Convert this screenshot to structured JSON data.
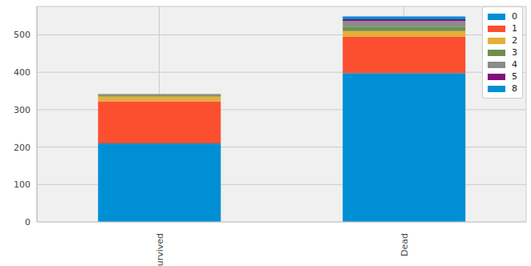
{
  "chart_data": {
    "type": "bar",
    "stacked": true,
    "categories": [
      "Survived",
      "Dead"
    ],
    "series": [
      {
        "name": "0",
        "color": "#008fd5",
        "values": [
          210,
          398
        ]
      },
      {
        "name": "1",
        "color": "#fc4f30",
        "values": [
          112,
          97
        ]
      },
      {
        "name": "2",
        "color": "#e5ae38",
        "values": [
          13,
          15
        ]
      },
      {
        "name": "3",
        "color": "#6d904f",
        "values": [
          4,
          12
        ]
      },
      {
        "name": "4",
        "color": "#8b8b8b",
        "values": [
          3,
          15
        ]
      },
      {
        "name": "5",
        "color": "#810f7c",
        "values": [
          0,
          5
        ]
      },
      {
        "name": "8",
        "color": "#008fd5",
        "values": [
          0,
          7
        ]
      }
    ],
    "ylim": [
      0,
      576
    ],
    "yticks": [
      0,
      100,
      200,
      300,
      400,
      500
    ],
    "grid": true,
    "legend": "upper right"
  }
}
